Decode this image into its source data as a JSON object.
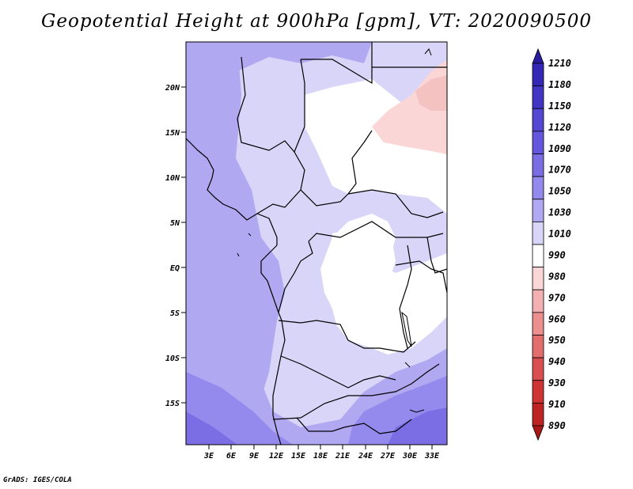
{
  "title": "Geopotential Height at 900hPa [gpm], VT: 2020090500",
  "credit": "GrADS: IGES/COLA",
  "map": {
    "lat_labels": [
      "20N",
      "15N",
      "10N",
      "5N",
      "EQ",
      "5S",
      "10S",
      "15S"
    ],
    "lon_labels": [
      "3E",
      "6E",
      "9E",
      "12E",
      "15E",
      "18E",
      "21E",
      "24E",
      "27E",
      "30E",
      "33E"
    ]
  },
  "colorbar": {
    "levels": [
      "1210",
      "1180",
      "1150",
      "1120",
      "1090",
      "1070",
      "1050",
      "1030",
      "1010",
      "990",
      "980",
      "970",
      "960",
      "950",
      "940",
      "930",
      "910",
      "890"
    ],
    "colors": [
      "#2a1c9e",
      "#3528b4",
      "#4335c4",
      "#5447d2",
      "#6556dd",
      "#7b6ee4",
      "#9489ec",
      "#b1a8f2",
      "#d8d5f8",
      "#ffffff",
      "#fbd6d6",
      "#f3b0b0",
      "#eb8f8f",
      "#e36e6e",
      "#d94e4e",
      "#ce3434",
      "#bf2424",
      "#a81818"
    ]
  }
}
